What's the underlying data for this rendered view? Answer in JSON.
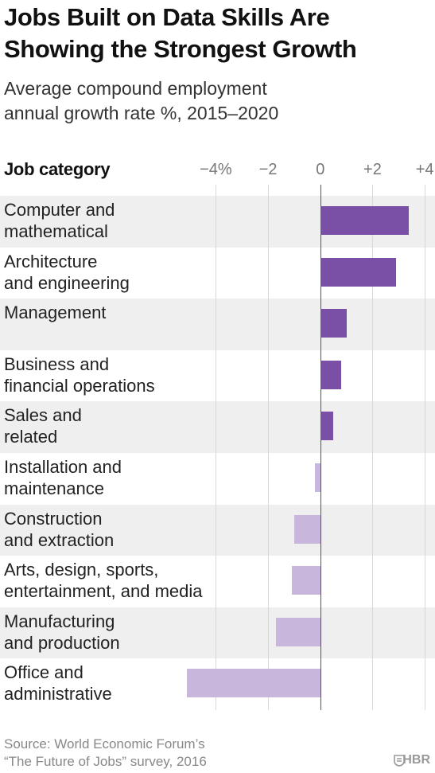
{
  "chart_data": {
    "type": "bar",
    "orientation": "horizontal",
    "title": "Jobs Built on Data Skills Are\nShowing the Strongest Growth",
    "subtitle": "Average compound employment\nannual growth rate %, 2015–2020",
    "category_axis_label": "Job category",
    "categories": [
      "Computer and\nmathematical",
      "Architecture\nand engineering",
      "Management",
      "Business and\nfinancial operations",
      "Sales and\nrelated",
      "Installation and\nmaintenance",
      "Construction\nand extraction",
      "Arts, design, sports,\nentertainment, and media",
      "Manufacturing\nand production",
      "Office and\nadministrative"
    ],
    "values": [
      3.4,
      2.9,
      1.0,
      0.8,
      0.5,
      -0.2,
      -1.0,
      -1.1,
      -1.7,
      -5.1
    ],
    "positive_color": "#7a4fa6",
    "negative_color": "#c8b6dc",
    "xlim": [
      -5.2,
      4.3
    ],
    "xticks": [
      {
        "value": -4,
        "label": "−4%"
      },
      {
        "value": -2,
        "label": "−2"
      },
      0,
      {
        "value": 2,
        "label": "+2"
      },
      {
        "value": 4,
        "label": "+4"
      }
    ],
    "grid": true,
    "source": "Source: World Economic Forum’s\n“The Future of Jobs” survey, 2016",
    "brand": "HBR"
  }
}
